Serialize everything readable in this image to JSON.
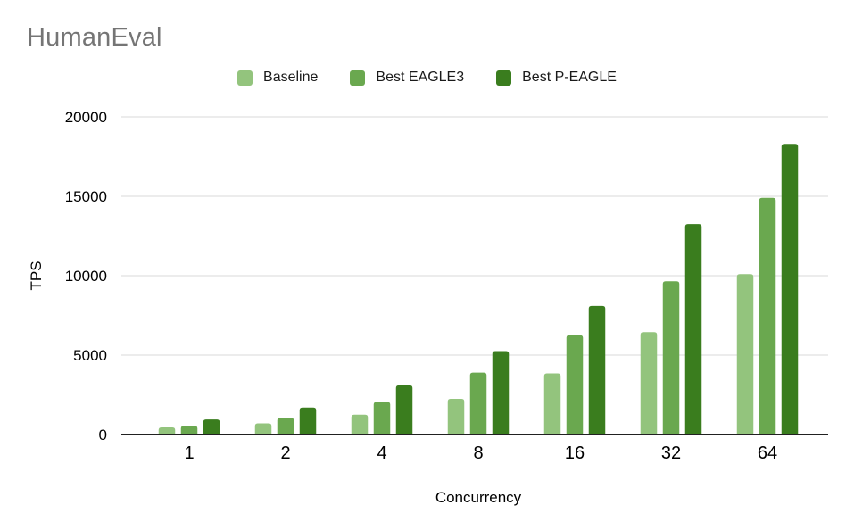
{
  "chart_data": {
    "type": "bar",
    "title": "HumanEval",
    "xlabel": "Concurrency",
    "ylabel": "TPS",
    "categories": [
      "1",
      "2",
      "4",
      "8",
      "16",
      "32",
      "64"
    ],
    "series": [
      {
        "name": "Baseline",
        "color": "#93c47d",
        "values": [
          450,
          700,
          1250,
          2250,
          3850,
          6450,
          10100
        ]
      },
      {
        "name": "Best EAGLE3",
        "color": "#6aa84f",
        "values": [
          550,
          1050,
          2050,
          3900,
          6250,
          9650,
          14900
        ]
      },
      {
        "name": "Best P-EAGLE",
        "color": "#3a7d1e",
        "values": [
          950,
          1700,
          3100,
          5250,
          8100,
          13250,
          18300
        ]
      }
    ],
    "ylim": [
      0,
      20000
    ],
    "yticks": [
      0,
      5000,
      10000,
      15000,
      20000
    ],
    "grid": true,
    "legend_position": "top",
    "gridline_color": "#d9d9d9",
    "axis_line_color": "#212121",
    "title_color": "#757575"
  }
}
